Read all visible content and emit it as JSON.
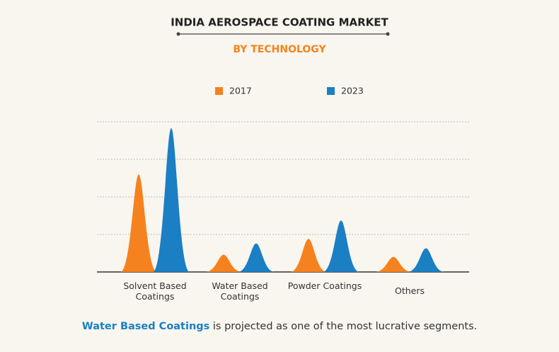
{
  "chart_data": {
    "type": "peak",
    "title": "INDIA AEROSPACE COATING MARKET",
    "subtitle": "BY TECHNOLOGY",
    "categories": [
      "Solvent Based Coatings",
      "Water Based Coatings",
      "Powder Coatings",
      "Others"
    ],
    "series": [
      {
        "name": "2017",
        "color": "#f5821f",
        "values": [
          2.6,
          0.46,
          0.88,
          0.4
        ]
      },
      {
        "name": "2023",
        "color": "#1b7fc4",
        "values": [
          3.83,
          0.76,
          1.37,
          0.63
        ]
      }
    ],
    "ylim": [
      0,
      4
    ],
    "yticks": [
      0,
      1,
      2,
      3,
      4
    ],
    "grid": true,
    "footnote": {
      "highlight": "Water Based Coatings",
      "text": "is projected as one of the most lucrative segments."
    }
  }
}
